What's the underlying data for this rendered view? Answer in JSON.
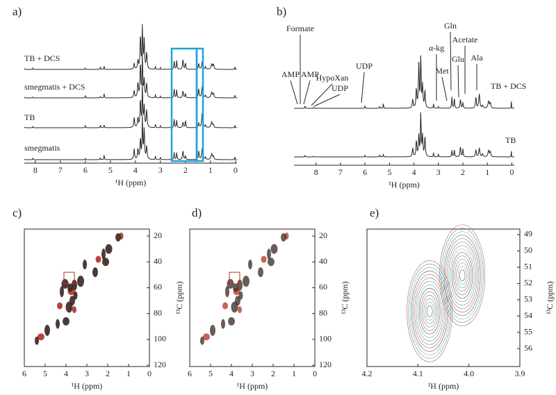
{
  "panels": [
    {
      "label": "a)",
      "xlabel": "¹H (ppm)",
      "xlim": [
        8.44,
        -0.06
      ],
      "xticks": [
        8,
        7,
        6,
        5,
        4,
        3,
        2,
        1,
        0
      ],
      "traces": [
        "TB + DCS",
        "smegmatis + DCS",
        "TB",
        "smegmatis"
      ]
    },
    {
      "label": "b)",
      "xlabel": "¹H (ppm)",
      "xlim": [
        8.9,
        -0.1
      ],
      "xticks": [
        8,
        7,
        6,
        5,
        4,
        3,
        2,
        1,
        0
      ],
      "traces": [
        "TB + DCS",
        "TB"
      ],
      "annotations": [
        "Formate",
        "AMP",
        "AMP",
        "HypoXan",
        "UDP",
        "UDP",
        "α-kg",
        "Met",
        "Gln",
        "Glu",
        "Acetate",
        "Ala"
      ]
    },
    {
      "label": "c)",
      "xlabel": "¹H (ppm)",
      "ylabel": "¹³C (ppm)",
      "xlim": [
        6,
        0
      ],
      "ylim": [
        14.6,
        121
      ],
      "xticks": [
        6,
        5,
        4,
        3,
        2,
        1,
        0
      ],
      "yticks": [
        20,
        40,
        60,
        80,
        100,
        120
      ]
    },
    {
      "label": "d)",
      "xlabel": "¹H (ppm)",
      "ylabel": "¹³C (ppm)",
      "xlim": [
        6,
        0
      ],
      "ylim": [
        14.6,
        121
      ],
      "xticks": [
        6,
        5,
        4,
        3,
        2,
        1,
        0
      ],
      "yticks": [
        20,
        40,
        60,
        80,
        100,
        120
      ]
    },
    {
      "label": "e)",
      "xlabel": "¹H (ppm)",
      "ylabel": "¹³C (ppm)",
      "xlim": [
        4.2,
        3.9
      ],
      "ylim": [
        48.66,
        57.1
      ],
      "xticks": [
        4.2,
        4.1,
        {
          "value": 4,
          "label": "4.0"
        },
        3.9
      ],
      "yticks": [
        49,
        50,
        51,
        52,
        53,
        54,
        55,
        56
      ]
    }
  ]
}
